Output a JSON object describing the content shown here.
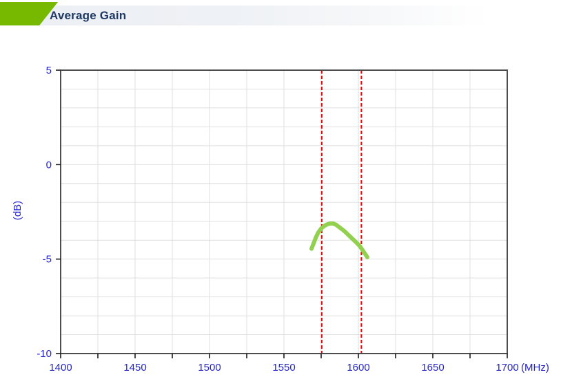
{
  "header": {
    "title": "Average Gain"
  },
  "colors": {
    "accent_green": "#76B900",
    "header_bar_gray": "#EDF0F4",
    "title_navy": "#1F3864",
    "axis_label_blue": "#2424CC",
    "frame_gray": "#4D4D4D",
    "grid_gray": "#DFDFDF",
    "tick_black": "#1A1A1A",
    "curve_green": "#92D050",
    "marker_red": "#FF0000"
  },
  "chart_data": {
    "type": "line",
    "title": "Average Gain",
    "xlabel": "(MHz)",
    "ylabel": "(dB)",
    "xlim": [
      1400,
      1700
    ],
    "ylim": [
      -10,
      5
    ],
    "x_tick_labels": [
      1400,
      1450,
      1500,
      1550,
      1600,
      1650,
      1700
    ],
    "y_tick_labels": [
      5,
      0,
      -5,
      -10
    ],
    "x_grid_step": 25,
    "y_grid_step": 1,
    "grid": true,
    "legend": "none",
    "band_markers": {
      "x_values": [
        1575.42,
        1602
      ],
      "style": "dashed",
      "color": "#FF0000"
    },
    "series": [
      {
        "name": "average gain",
        "color": "#92D050",
        "x": [
          1568.5,
          1570,
          1571.5,
          1573,
          1575,
          1577,
          1579,
          1581,
          1583,
          1585,
          1587,
          1589,
          1591,
          1593,
          1595,
          1597,
          1599,
          1601,
          1603,
          1605,
          1606
        ],
        "y": [
          -4.45,
          -4.15,
          -3.85,
          -3.6,
          -3.38,
          -3.25,
          -3.16,
          -3.12,
          -3.12,
          -3.18,
          -3.3,
          -3.42,
          -3.55,
          -3.7,
          -3.85,
          -4.0,
          -4.15,
          -4.32,
          -4.55,
          -4.78,
          -4.9
        ]
      }
    ]
  }
}
